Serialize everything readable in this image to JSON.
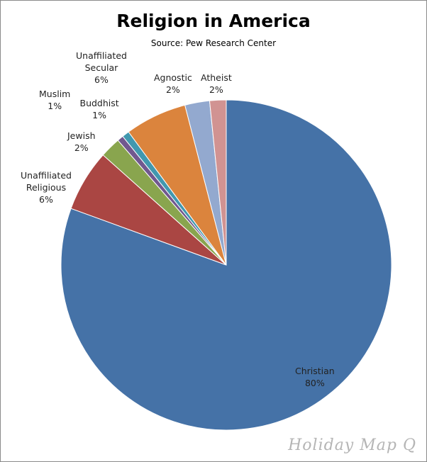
{
  "chart_data": {
    "type": "pie",
    "title": "Religion in America",
    "subtitle": "Source: Pew Research Center",
    "slices": [
      {
        "label": [
          "Christian"
        ],
        "value": 80,
        "pct": "80%",
        "color": "#4572a7"
      },
      {
        "label": [
          "Unaffiliated",
          "Religious"
        ],
        "value": 6,
        "pct": "6%",
        "color": "#aa4643"
      },
      {
        "label": [
          "Jewish"
        ],
        "value": 2,
        "pct": "2%",
        "color": "#89a54e"
      },
      {
        "label": [
          "Muslim"
        ],
        "value": 0.6,
        "pct": "1%",
        "color": "#71588f"
      },
      {
        "label": [
          "Buddhist"
        ],
        "value": 0.7,
        "pct": "1%",
        "color": "#4198af"
      },
      {
        "label": [
          "Unaffiliated",
          "Secular"
        ],
        "value": 6,
        "pct": "6%",
        "color": "#db843d"
      },
      {
        "label": [
          "Agnostic"
        ],
        "value": 2.4,
        "pct": "2%",
        "color": "#93a9cf"
      },
      {
        "label": [
          "Atheist"
        ],
        "value": 1.6,
        "pct": "2%",
        "color": "#d19392"
      }
    ],
    "legend": "none"
  },
  "watermark": "Holiday Map Q"
}
